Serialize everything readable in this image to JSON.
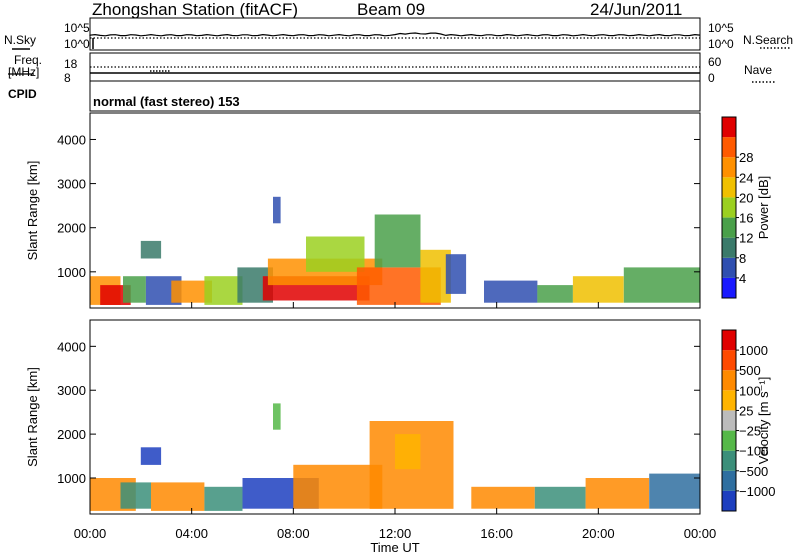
{
  "header": {
    "station": "Zhongshan Station (fitACF)",
    "beam": "Beam 09",
    "date": "24/Jun/2011"
  },
  "strips": {
    "nsky_label": "N.Sky",
    "nsky_ticks": [
      "10^5",
      "10^0"
    ],
    "nsearch_label": "N.Search",
    "nsearch_ticks": [
      "10^5",
      "10^0"
    ],
    "freq_label": "Freq.",
    "freq_unit": "[MHz]",
    "freq_ticks": [
      "18",
      "8"
    ],
    "nave_label": "Nave",
    "nave_ticks": [
      "60",
      "0"
    ],
    "cpid_label": "CPID",
    "cpid_value": "normal (fast stereo) 153"
  },
  "colors": {
    "power": [
      "#1a1aff",
      "#2f4fb0",
      "#3a7a6a",
      "#4aa04a",
      "#9bd020",
      "#f0c000",
      "#ff9000",
      "#ff5a00",
      "#e00000"
    ],
    "velocity": [
      "#1d3fbf",
      "#2f6fa0",
      "#3b8f7a",
      "#55b848",
      "#bcbcbc",
      "#ffb400",
      "#ff8a00",
      "#ff4a00",
      "#e00000"
    ]
  },
  "chart_data": [
    {
      "type": "heatmap",
      "name": "power",
      "ylabel": "Slant Range [km]",
      "yticks": [
        "1000",
        "2000",
        "3000",
        "4000"
      ],
      "ylim": [
        180,
        4600
      ],
      "xlim": [
        0,
        24
      ],
      "colorbar_label": "Power [dB]",
      "colorbar_ticks": [
        "4",
        "8",
        "12",
        "16",
        "20",
        "24",
        "28"
      ],
      "bands": [
        {
          "t0": 0.0,
          "t1": 1.2,
          "r0": 250,
          "r1": 900,
          "c": 6
        },
        {
          "t0": 0.4,
          "t1": 1.6,
          "r0": 250,
          "r1": 700,
          "c": 8
        },
        {
          "t0": 1.3,
          "t1": 2.2,
          "r0": 300,
          "r1": 900,
          "c": 3
        },
        {
          "t0": 2.0,
          "t1": 2.8,
          "r0": 1300,
          "r1": 1700,
          "c": 2
        },
        {
          "t0": 2.2,
          "t1": 3.6,
          "r0": 250,
          "r1": 900,
          "c": 1
        },
        {
          "t0": 3.2,
          "t1": 4.8,
          "r0": 300,
          "r1": 800,
          "c": 6
        },
        {
          "t0": 4.5,
          "t1": 6.0,
          "r0": 250,
          "r1": 900,
          "c": 4
        },
        {
          "t0": 5.8,
          "t1": 7.2,
          "r0": 300,
          "r1": 1100,
          "c": 2
        },
        {
          "t0": 6.8,
          "t1": 11.0,
          "r0": 350,
          "r1": 900,
          "c": 8
        },
        {
          "t0": 7.0,
          "t1": 11.5,
          "r0": 700,
          "r1": 1300,
          "c": 6
        },
        {
          "t0": 7.2,
          "t1": 7.5,
          "r0": 2100,
          "r1": 2700,
          "c": 1
        },
        {
          "t0": 8.5,
          "t1": 10.8,
          "r0": 1000,
          "r1": 1800,
          "c": 4
        },
        {
          "t0": 10.5,
          "t1": 13.8,
          "r0": 250,
          "r1": 1100,
          "c": 7
        },
        {
          "t0": 11.2,
          "t1": 13.0,
          "r0": 1100,
          "r1": 2300,
          "c": 3
        },
        {
          "t0": 13.0,
          "t1": 14.2,
          "r0": 300,
          "r1": 1500,
          "c": 5
        },
        {
          "t0": 14.0,
          "t1": 14.8,
          "r0": 500,
          "r1": 1400,
          "c": 1
        },
        {
          "t0": 15.5,
          "t1": 17.6,
          "r0": 300,
          "r1": 800,
          "c": 1
        },
        {
          "t0": 17.6,
          "t1": 19.0,
          "r0": 300,
          "r1": 700,
          "c": 3
        },
        {
          "t0": 19.0,
          "t1": 21.0,
          "r0": 300,
          "r1": 900,
          "c": 5
        },
        {
          "t0": 21.0,
          "t1": 24.0,
          "r0": 300,
          "r1": 1100,
          "c": 3
        }
      ]
    },
    {
      "type": "heatmap",
      "name": "velocity",
      "ylabel": "Slant Range [km]",
      "yticks": [
        "1000",
        "2000",
        "3000",
        "4000"
      ],
      "ylim": [
        180,
        4600
      ],
      "xlim": [
        0,
        24
      ],
      "xticks": [
        "00:00",
        "04:00",
        "08:00",
        "12:00",
        "16:00",
        "20:00",
        "00:00"
      ],
      "xlabel": "Time UT",
      "colorbar_label": "Velocity [m s⁻¹]",
      "colorbar_ticks": [
        "1000",
        "500",
        "100",
        "25",
        "−25",
        "−100",
        "−500",
        "−1000"
      ],
      "bands": [
        {
          "t0": 0.0,
          "t1": 1.8,
          "r0": 250,
          "r1": 1000,
          "c": 6
        },
        {
          "t0": 1.2,
          "t1": 2.4,
          "r0": 300,
          "r1": 900,
          "c": 2
        },
        {
          "t0": 2.0,
          "t1": 2.8,
          "r0": 1300,
          "r1": 1700,
          "c": 0
        },
        {
          "t0": 2.4,
          "t1": 4.5,
          "r0": 250,
          "r1": 900,
          "c": 6
        },
        {
          "t0": 4.5,
          "t1": 6.0,
          "r0": 250,
          "r1": 800,
          "c": 2
        },
        {
          "t0": 6.0,
          "t1": 9.0,
          "r0": 300,
          "r1": 1000,
          "c": 0
        },
        {
          "t0": 7.2,
          "t1": 7.5,
          "r0": 2100,
          "r1": 2700,
          "c": 3
        },
        {
          "t0": 8.0,
          "t1": 11.5,
          "r0": 300,
          "r1": 1300,
          "c": 6
        },
        {
          "t0": 11.0,
          "t1": 14.3,
          "r0": 300,
          "r1": 2300,
          "c": 6
        },
        {
          "t0": 12.0,
          "t1": 13.0,
          "r0": 1200,
          "r1": 2000,
          "c": 5
        },
        {
          "t0": 15.0,
          "t1": 17.5,
          "r0": 300,
          "r1": 800,
          "c": 6
        },
        {
          "t0": 17.5,
          "t1": 19.5,
          "r0": 300,
          "r1": 800,
          "c": 2
        },
        {
          "t0": 19.5,
          "t1": 22.0,
          "r0": 300,
          "r1": 1000,
          "c": 6
        },
        {
          "t0": 22.0,
          "t1": 24.0,
          "r0": 300,
          "r1": 1100,
          "c": 1
        }
      ]
    }
  ]
}
